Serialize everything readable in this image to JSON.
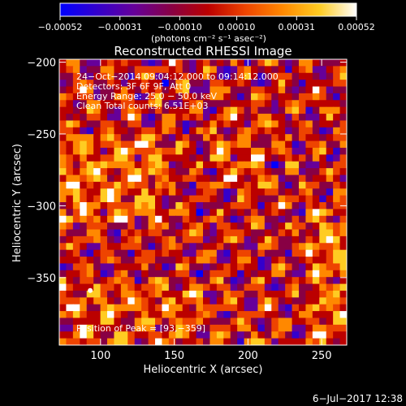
{
  "colorbar": {
    "tick_labels": [
      "−0.00052",
      "−0.00031",
      "−0.00010",
      "0.00010",
      "0.00031",
      "0.00052"
    ],
    "tick_values": [
      -0.00052,
      -0.00031,
      -0.0001,
      0.0001,
      0.00031,
      0.00052
    ],
    "unit_label": "(photons cm⁻² s⁻¹ asec⁻²)",
    "colors": [
      "#0000ff",
      "#3300cc",
      "#660099",
      "#880044",
      "#bb0000",
      "#ee4400",
      "#ff8800",
      "#ffcc22",
      "#ffffff"
    ]
  },
  "title": "Reconstructed RHESSI Image",
  "annotations": {
    "time": "24−Oct−2014 09:04:12.000 to 09:14:12.000",
    "detectors": "Detectors: 3F 6F 9F, Att 0",
    "energy": "Energy Range: 25.0 − 50.0 keV",
    "clean": "Clean     Total counts: 6.51E+03",
    "peak": "Position of Peak = [93,−359]"
  },
  "footer_timestamp": "6−Jul−2017 12:38",
  "chart_data": {
    "type": "heatmap",
    "title": "Reconstructed RHESSI Image",
    "xlabel": "Heliocentric X (arcsec)",
    "ylabel": "Heliocentric Y (arcsec)",
    "xlim": [
      72,
      267
    ],
    "ylim": [
      -397,
      -198
    ],
    "x_ticks": [
      100,
      150,
      200,
      250
    ],
    "y_ticks": [
      -200,
      -250,
      -300,
      -350
    ],
    "x_tick_labels": [
      "100",
      "150",
      "200",
      "250"
    ],
    "y_tick_labels": [
      "−200",
      "−250",
      "−300",
      "−350"
    ],
    "value_range": [
      -0.00052,
      0.00052
    ],
    "peak_position": [
      93,
      -359
    ]
  }
}
